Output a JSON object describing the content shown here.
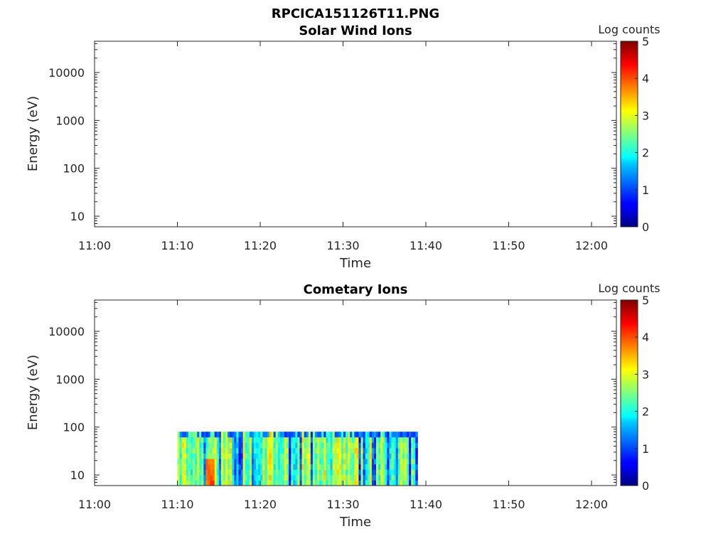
{
  "title": "RPCICA151126T11.PNG",
  "chart_data": [
    {
      "type": "heatmap",
      "title": "Solar Wind Ions",
      "xlabel": "Time",
      "ylabel": "Energy (eV)",
      "x_ticks": [
        "11:00",
        "11:10",
        "11:20",
        "11:30",
        "11:40",
        "11:50",
        "12:00"
      ],
      "x_range": [
        "11:00",
        "12:03"
      ],
      "y_scale": "log",
      "y_ticks": [
        10,
        100,
        1000,
        10000
      ],
      "y_tick_labels": [
        "10",
        "100",
        "1000",
        "10000"
      ],
      "y_range": [
        6,
        45000
      ],
      "colorbar": {
        "label": "Log counts",
        "range": [
          0,
          5
        ],
        "ticks": [
          "0",
          "1",
          "2",
          "3",
          "4",
          "5"
        ]
      },
      "data": []
    },
    {
      "type": "heatmap",
      "title": "Cometary Ions",
      "xlabel": "Time",
      "ylabel": "Energy (eV)",
      "x_ticks": [
        "11:00",
        "11:10",
        "11:20",
        "11:30",
        "11:40",
        "11:50",
        "12:00"
      ],
      "x_range": [
        "11:00",
        "12:03"
      ],
      "y_scale": "log",
      "y_ticks": [
        10,
        100,
        1000,
        10000
      ],
      "y_tick_labels": [
        "10",
        "100",
        "1000",
        "10000"
      ],
      "y_range": [
        6,
        45000
      ],
      "colorbar": {
        "label": "Log counts",
        "range": [
          0,
          5
        ],
        "ticks": [
          "0",
          "1",
          "2",
          "3",
          "4",
          "5"
        ]
      },
      "data": {
        "time_start": "11:10",
        "time_end": "11:39",
        "energy_min_eV": 6,
        "energy_max_eV": 80,
        "time_bins": 110,
        "energy_bins": 10,
        "typical_log_counts": [
          1,
          3.2
        ],
        "peak_log_counts": 4.2,
        "peak_time": "11:14"
      }
    }
  ]
}
